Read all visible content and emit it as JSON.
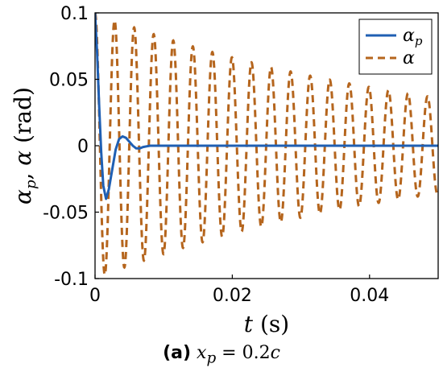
{
  "chart_data": {
    "type": "line",
    "xlabel": "t (s)",
    "ylabel": "αp, α (rad)",
    "xlim": [
      0,
      0.05
    ],
    "ylim": [
      -0.1,
      0.1
    ],
    "xticks": [
      "0",
      "0.02",
      "0.04"
    ],
    "yticks": [
      "0.1",
      "0.05",
      "0",
      "-0.05",
      "-0.1"
    ],
    "grid": false,
    "legend_position": "top-right",
    "caption": {
      "label": "(a)",
      "var": "x",
      "sub": "p",
      "rest": " = 0.2",
      "unit": "c"
    },
    "series": [
      {
        "name": "αp",
        "legend_main": "α",
        "legend_sub": "p",
        "color": "#1f5fb3",
        "style": "solid",
        "x": [
          0,
          0.0003,
          0.0006,
          0.0009,
          0.0012,
          0.0016,
          0.002,
          0.0025,
          0.003,
          0.0035,
          0.004,
          0.0045,
          0.005,
          0.0055,
          0.006,
          0.0065,
          0.007,
          0.0075,
          0.008,
          0.009,
          0.01,
          0.012,
          0.015,
          0.02,
          0.03,
          0.04,
          0.05
        ],
        "y": [
          0.1,
          0.07,
          0.03,
          -0.005,
          -0.03,
          -0.04,
          -0.033,
          -0.018,
          -0.003,
          0.005,
          0.007,
          0.006,
          0.003,
          0.0,
          -0.002,
          -0.002,
          -0.001,
          -0.0005,
          0.0,
          0.0,
          0.0,
          0.0,
          0.0,
          0.0,
          0.0,
          0.0,
          0.0
        ]
      },
      {
        "name": "α",
        "legend_main": "α",
        "legend_sub": "",
        "color": "#b5651d",
        "style": "dashed",
        "initial_amplitude": 0.1,
        "period": 0.00285,
        "amplitude_at_end": 0.036
      }
    ]
  }
}
